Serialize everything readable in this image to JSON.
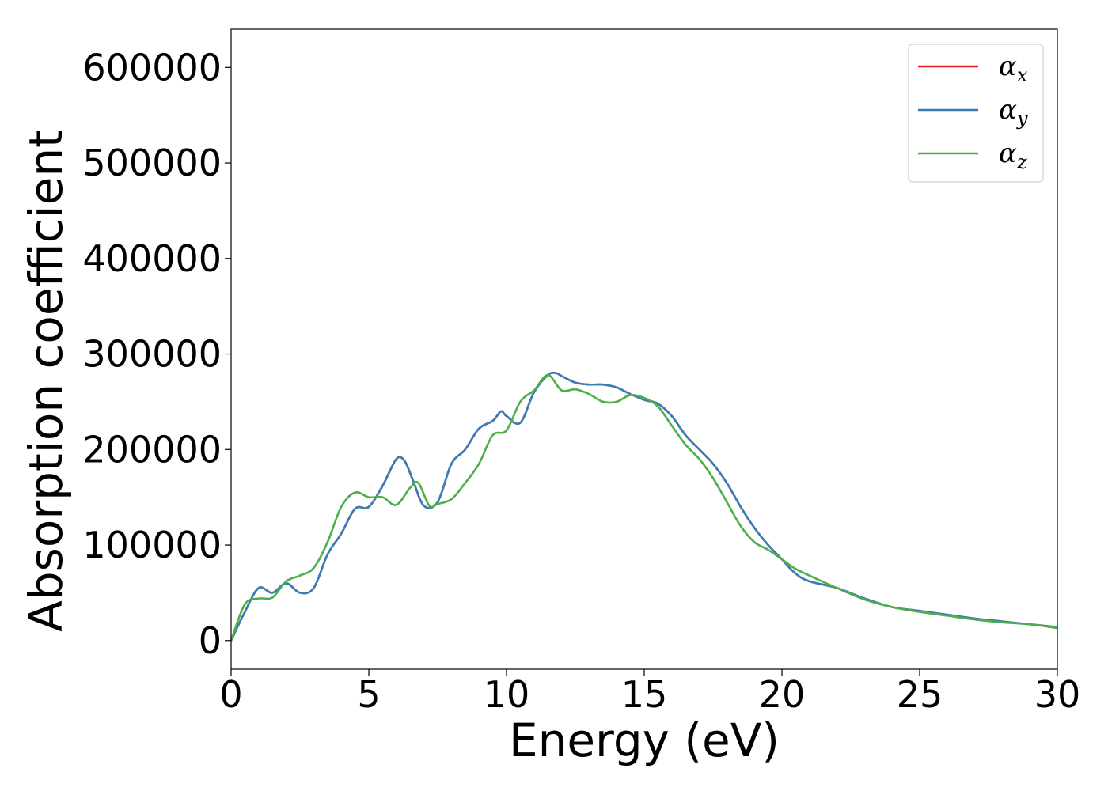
{
  "chart_data": {
    "type": "line",
    "title": "",
    "xlabel": "Energy (eV)",
    "ylabel": "Absorption coefficient",
    "xlim": [
      0,
      30
    ],
    "ylim": [
      -30000,
      640000
    ],
    "xticks": [
      0,
      5,
      10,
      15,
      20,
      25,
      30
    ],
    "xtick_labels": [
      "0",
      "5",
      "10",
      "15",
      "20",
      "25",
      "30"
    ],
    "yticks": [
      0,
      100000,
      200000,
      300000,
      400000,
      500000,
      600000
    ],
    "ytick_labels": [
      "0",
      "100000",
      "200000",
      "300000",
      "400000",
      "500000",
      "600000"
    ],
    "grid": false,
    "legend_position": "top-right",
    "series": [
      {
        "name": "α",
        "subscript": "x",
        "color": "#e41a1c",
        "x": [
          0,
          0.5,
          1,
          1.5,
          2,
          2.5,
          3,
          3.5,
          4,
          4.5,
          5,
          5.5,
          6,
          6.3,
          6.6,
          7,
          7.5,
          8,
          8.5,
          9,
          9.5,
          9.8,
          10,
          10.5,
          11,
          11.5,
          11.8,
          12,
          12.5,
          13,
          13.5,
          14,
          14.5,
          15,
          15.5,
          16,
          16.5,
          17,
          17.5,
          18,
          18.5,
          19,
          19.5,
          20,
          20.5,
          21,
          22,
          23,
          24,
          25,
          26,
          27,
          28,
          29,
          30
        ],
        "y": [
          0,
          30000,
          55000,
          50000,
          60000,
          50000,
          55000,
          90000,
          112000,
          138000,
          140000,
          162000,
          190000,
          188000,
          168000,
          141000,
          145000,
          185000,
          200000,
          222000,
          230000,
          240000,
          235000,
          228000,
          260000,
          278000,
          280000,
          277000,
          270000,
          268000,
          268000,
          265000,
          258000,
          252000,
          248000,
          235000,
          215000,
          200000,
          185000,
          165000,
          140000,
          118000,
          100000,
          85000,
          70000,
          62000,
          55000,
          44000,
          35000,
          31000,
          27000,
          23000,
          20000,
          17000,
          14000
        ]
      },
      {
        "name": "α",
        "subscript": "y",
        "color": "#377eb8",
        "x": [
          0,
          0.5,
          1,
          1.5,
          2,
          2.5,
          3,
          3.5,
          4,
          4.5,
          5,
          5.5,
          6,
          6.3,
          6.6,
          7,
          7.5,
          8,
          8.5,
          9,
          9.5,
          9.8,
          10,
          10.5,
          11,
          11.5,
          11.8,
          12,
          12.5,
          13,
          13.5,
          14,
          14.5,
          15,
          15.5,
          16,
          16.5,
          17,
          17.5,
          18,
          18.5,
          19,
          19.5,
          20,
          20.5,
          21,
          22,
          23,
          24,
          25,
          26,
          27,
          28,
          29,
          30
        ],
        "y": [
          0,
          30000,
          55000,
          50000,
          60000,
          50000,
          55000,
          90000,
          112000,
          138000,
          140000,
          162000,
          190000,
          188000,
          168000,
          141000,
          145000,
          185000,
          200000,
          222000,
          230000,
          240000,
          235000,
          228000,
          260000,
          278000,
          280000,
          277000,
          270000,
          268000,
          268000,
          265000,
          258000,
          252000,
          248000,
          235000,
          215000,
          200000,
          185000,
          165000,
          140000,
          118000,
          100000,
          85000,
          70000,
          62000,
          55000,
          44000,
          35000,
          31000,
          27000,
          23000,
          20000,
          17000,
          14000
        ]
      },
      {
        "name": "α",
        "subscript": "z",
        "color": "#4daf4a",
        "x": [
          0,
          0.5,
          1,
          1.5,
          2,
          2.5,
          3,
          3.5,
          4,
          4.5,
          5,
          5.5,
          6,
          6.5,
          6.8,
          7.2,
          7.5,
          8,
          8.5,
          9,
          9.5,
          10,
          10.5,
          11,
          11.5,
          12,
          12.5,
          13,
          13.5,
          14,
          14.5,
          15,
          15.5,
          16,
          16.5,
          17,
          17.5,
          18,
          18.5,
          19,
          19.5,
          20,
          20.5,
          21,
          22,
          23,
          24,
          25,
          26,
          27,
          28,
          29,
          30
        ],
        "y": [
          0,
          38000,
          44000,
          45000,
          62000,
          68000,
          76000,
          103000,
          140000,
          155000,
          150000,
          150000,
          142000,
          160000,
          165000,
          141000,
          143000,
          148000,
          165000,
          185000,
          215000,
          220000,
          250000,
          262000,
          278000,
          262000,
          263000,
          258000,
          250000,
          250000,
          257000,
          254000,
          245000,
          225000,
          205000,
          190000,
          170000,
          145000,
          120000,
          103000,
          95000,
          85000,
          75000,
          68000,
          55000,
          43000,
          35000,
          30000,
          26000,
          22000,
          19000,
          17000,
          13000
        ]
      }
    ]
  }
}
